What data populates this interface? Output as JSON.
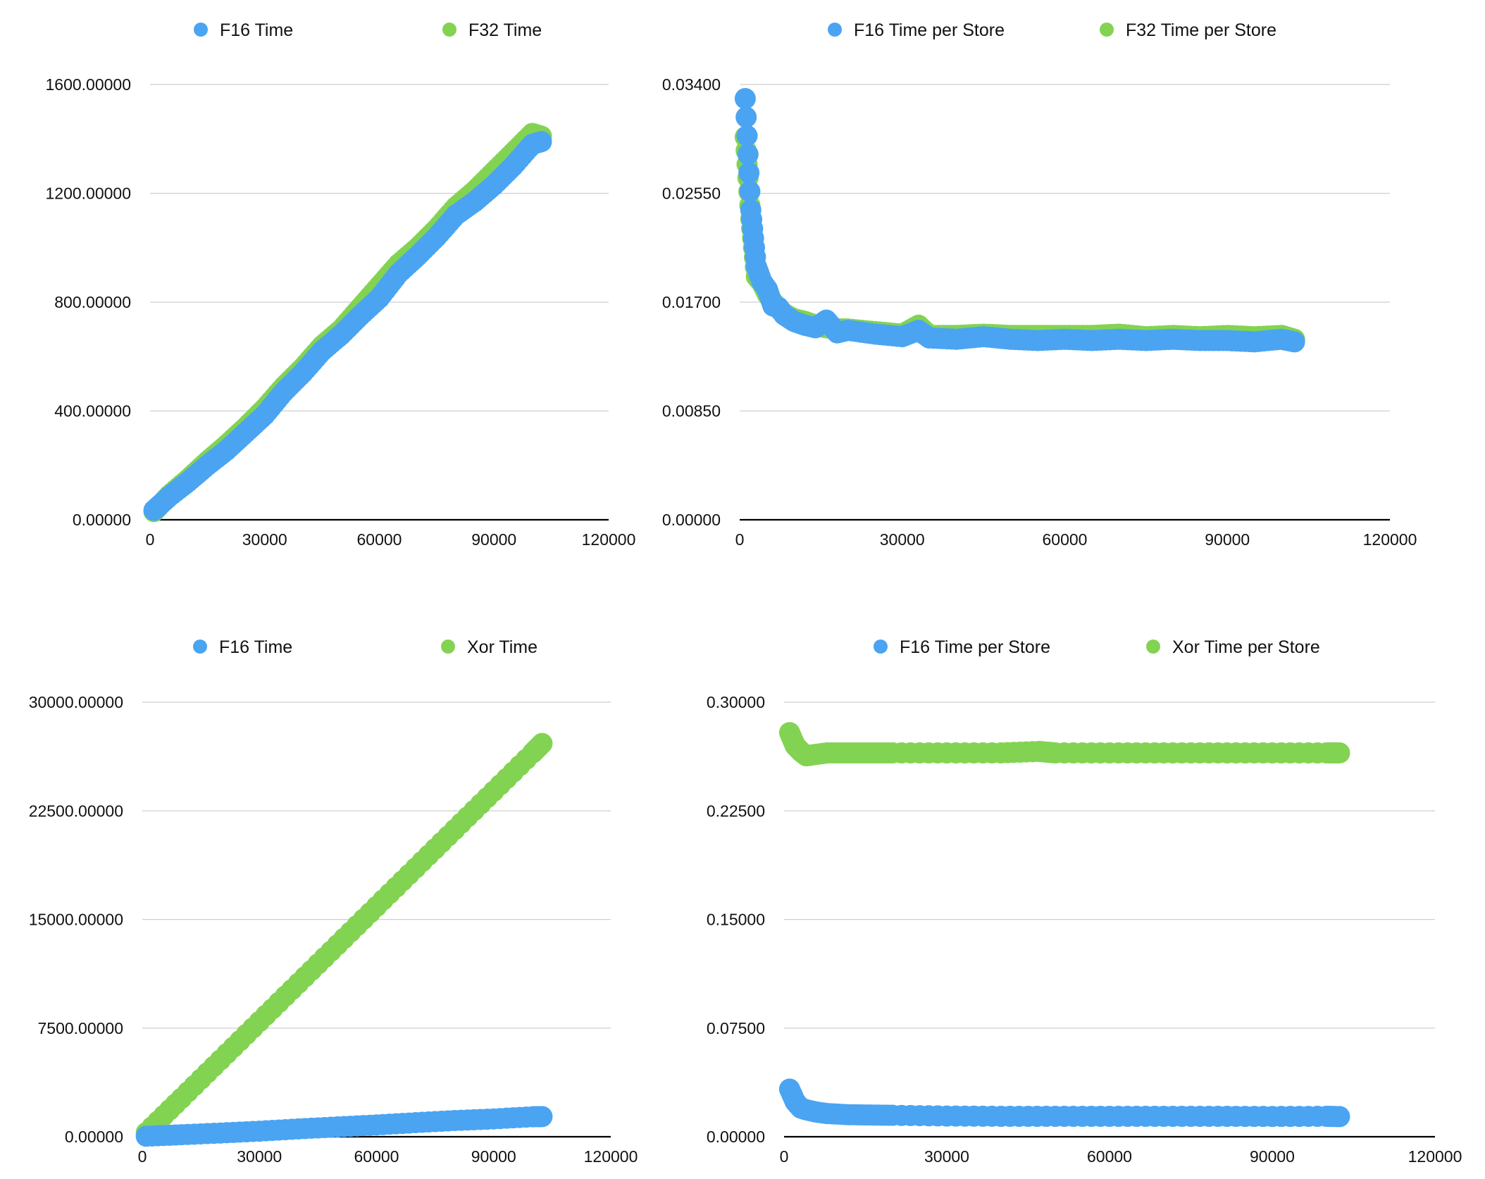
{
  "colors": {
    "blue": "#4aa4f2",
    "green": "#83d352",
    "grid": "#cfcfcf",
    "axis": "#000000"
  },
  "chart_data": [
    {
      "type": "scatter",
      "title": "",
      "xlabel": "",
      "ylabel": "",
      "xlim": [
        0,
        120000
      ],
      "ylim": [
        0,
        1600
      ],
      "x_ticks": [
        0,
        30000,
        60000,
        90000,
        120000
      ],
      "x_tick_labels": [
        "0",
        "30000",
        "60000",
        "90000",
        "120000"
      ],
      "y_ticks": [
        0,
        400,
        800,
        1200,
        1600
      ],
      "y_tick_labels": [
        "0.00000",
        "400.00000",
        "800.00000",
        "1200.00000",
        "1600.00000"
      ],
      "grid": true,
      "legend_position": "top",
      "series": [
        {
          "name": "F16 Time",
          "color": "#4aa4f2",
          "x": [
            1024,
            5000,
            10000,
            15000,
            20000,
            25000,
            30000,
            35000,
            40000,
            45000,
            50000,
            55000,
            60000,
            65000,
            70000,
            75000,
            80000,
            85000,
            90000,
            95000,
            100000,
            102400
          ],
          "y": [
            35,
            85,
            140,
            200,
            255,
            320,
            385,
            470,
            540,
            620,
            680,
            750,
            815,
            905,
            970,
            1040,
            1120,
            1170,
            1230,
            1300,
            1380,
            1390
          ]
        },
        {
          "name": "F32 Time",
          "color": "#83d352",
          "x": [
            1024,
            5000,
            10000,
            15000,
            20000,
            25000,
            30000,
            35000,
            40000,
            45000,
            50000,
            55000,
            60000,
            65000,
            70000,
            75000,
            80000,
            85000,
            90000,
            95000,
            100000,
            102400
          ],
          "y": [
            30,
            90,
            150,
            215,
            275,
            340,
            410,
            490,
            560,
            640,
            700,
            780,
            860,
            940,
            1000,
            1070,
            1150,
            1210,
            1280,
            1350,
            1420,
            1410
          ]
        }
      ]
    },
    {
      "type": "scatter",
      "title": "",
      "xlabel": "",
      "ylabel": "",
      "xlim": [
        0,
        120000
      ],
      "ylim": [
        0,
        0.034
      ],
      "x_ticks": [
        0,
        30000,
        60000,
        90000,
        120000
      ],
      "x_tick_labels": [
        "0",
        "30000",
        "60000",
        "90000",
        "120000"
      ],
      "y_ticks": [
        0,
        0.0085,
        0.017,
        0.0255,
        0.034
      ],
      "y_tick_labels": [
        "0.00000",
        "0.00850",
        "0.01700",
        "0.02550",
        "0.03400"
      ],
      "grid": true,
      "legend_position": "top",
      "series": [
        {
          "name": "F16 Time per Store",
          "color": "#4aa4f2",
          "x": [
            1024,
            2048,
            3072,
            4096,
            5120,
            6144,
            7168,
            8192,
            10000,
            12000,
            14000,
            16000,
            18000,
            20000,
            25000,
            30000,
            33000,
            35000,
            40000,
            45000,
            50000,
            55000,
            60000,
            65000,
            70000,
            75000,
            80000,
            85000,
            90000,
            95000,
            100000,
            102400
          ],
          "y": [
            0.0329,
            0.0242,
            0.0198,
            0.0186,
            0.018,
            0.0167,
            0.0166,
            0.016,
            0.0155,
            0.0152,
            0.015,
            0.0156,
            0.0146,
            0.0148,
            0.0145,
            0.0143,
            0.0148,
            0.0142,
            0.0141,
            0.0143,
            0.0141,
            0.014,
            0.0141,
            0.014,
            0.0141,
            0.014,
            0.0141,
            0.014,
            0.014,
            0.0139,
            0.0141,
            0.0139
          ]
        },
        {
          "name": "F32 Time per Store",
          "color": "#83d352",
          "x": [
            1024,
            2048,
            3072,
            4096,
            5120,
            6144,
            7168,
            8192,
            10000,
            12000,
            14000,
            16000,
            18000,
            20000,
            25000,
            30000,
            33000,
            35000,
            40000,
            45000,
            50000,
            55000,
            60000,
            65000,
            70000,
            75000,
            80000,
            85000,
            90000,
            95000,
            100000,
            102400
          ],
          "y": [
            0.0299,
            0.0235,
            0.019,
            0.0185,
            0.0176,
            0.017,
            0.0165,
            0.0161,
            0.0157,
            0.0155,
            0.0152,
            0.015,
            0.0149,
            0.0149,
            0.0147,
            0.0145,
            0.0152,
            0.0144,
            0.0144,
            0.0145,
            0.0144,
            0.0144,
            0.0144,
            0.0144,
            0.0145,
            0.0143,
            0.0144,
            0.0143,
            0.0144,
            0.0143,
            0.0144,
            0.0141
          ]
        }
      ]
    },
    {
      "type": "scatter",
      "title": "",
      "xlabel": "",
      "ylabel": "",
      "xlim": [
        0,
        120000
      ],
      "ylim": [
        0,
        30000
      ],
      "x_ticks": [
        0,
        30000,
        60000,
        90000,
        120000
      ],
      "x_tick_labels": [
        "0",
        "30000",
        "60000",
        "90000",
        "120000"
      ],
      "y_ticks": [
        0,
        7500,
        15000,
        22500,
        30000
      ],
      "y_tick_labels": [
        "0.00000",
        "7500.00000",
        "15000.00000",
        "22500.00000",
        "30000.00000"
      ],
      "grid": true,
      "legend_position": "top",
      "series": [
        {
          "name": "F16 Time",
          "color": "#4aa4f2",
          "x": [
            1024,
            10000,
            20000,
            30000,
            40000,
            50000,
            60000,
            70000,
            80000,
            90000,
            100000,
            102400
          ],
          "y": [
            35,
            140,
            255,
            385,
            540,
            680,
            815,
            970,
            1120,
            1230,
            1380,
            1390
          ]
        },
        {
          "name": "Xor Time",
          "color": "#83d352",
          "x": [
            1024,
            10000,
            20000,
            30000,
            40000,
            50000,
            60000,
            70000,
            80000,
            90000,
            100000,
            102400
          ],
          "y": [
            285,
            2650,
            5300,
            7950,
            10600,
            13250,
            15900,
            18550,
            21200,
            23850,
            26500,
            27150
          ]
        }
      ]
    },
    {
      "type": "scatter",
      "title": "",
      "xlabel": "",
      "ylabel": "",
      "xlim": [
        0,
        120000
      ],
      "ylim": [
        0,
        0.3
      ],
      "x_ticks": [
        0,
        30000,
        60000,
        90000,
        120000
      ],
      "x_tick_labels": [
        "0",
        "30000",
        "60000",
        "90000",
        "120000"
      ],
      "y_ticks": [
        0,
        0.075,
        0.15,
        0.225,
        0.3
      ],
      "y_tick_labels": [
        "0.00000",
        "0.07500",
        "0.15000",
        "0.22500",
        "0.30000"
      ],
      "grid": true,
      "legend_position": "top",
      "series": [
        {
          "name": "F16 Time per Store",
          "color": "#4aa4f2",
          "x": [
            1024,
            2048,
            3072,
            4096,
            6000,
            8000,
            12000,
            16000,
            20000,
            30000,
            40000,
            50000,
            60000,
            70000,
            80000,
            90000,
            100000,
            102400
          ],
          "y": [
            0.0329,
            0.0242,
            0.0198,
            0.0186,
            0.017,
            0.016,
            0.0152,
            0.015,
            0.0148,
            0.0143,
            0.0141,
            0.0141,
            0.0141,
            0.0141,
            0.0141,
            0.014,
            0.0141,
            0.0139
          ]
        },
        {
          "name": "Xor Time per Store",
          "color": "#83d352",
          "x": [
            1024,
            2048,
            3072,
            4096,
            6000,
            8000,
            12000,
            16000,
            20000,
            30000,
            40000,
            47000,
            50000,
            60000,
            70000,
            80000,
            90000,
            100000,
            102400
          ],
          "y": [
            0.279,
            0.27,
            0.266,
            0.263,
            0.264,
            0.265,
            0.265,
            0.265,
            0.265,
            0.265,
            0.265,
            0.266,
            0.265,
            0.265,
            0.265,
            0.265,
            0.265,
            0.265,
            0.265
          ]
        }
      ]
    }
  ]
}
